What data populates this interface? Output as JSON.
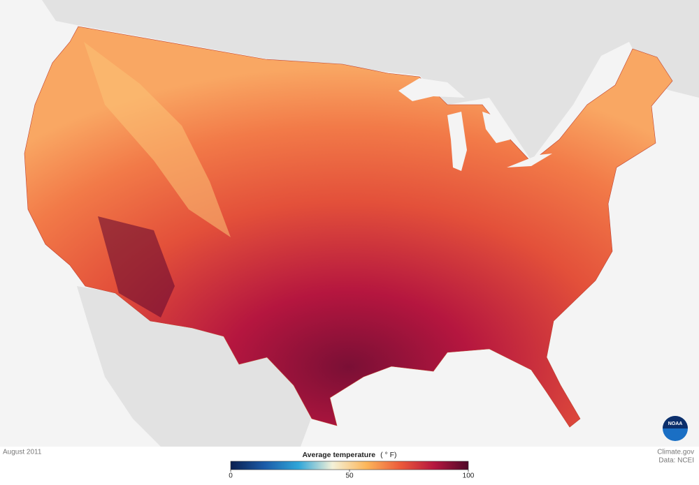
{
  "map": {
    "date": "August 2011",
    "legend": {
      "title": "Average temperature",
      "unit": "( ° F)",
      "range": [
        0,
        100
      ],
      "ticks": [
        0,
        50,
        100
      ],
      "colors": [
        "#0b1f4f",
        "#1b5ba8",
        "#2fa6d9",
        "#f4f1d8",
        "#fcb65a",
        "#ec5a3a",
        "#b5163f",
        "#4e0828"
      ]
    },
    "credits": [
      "Climate.gov",
      "Data: NCEI"
    ],
    "logo": "NOAA"
  }
}
